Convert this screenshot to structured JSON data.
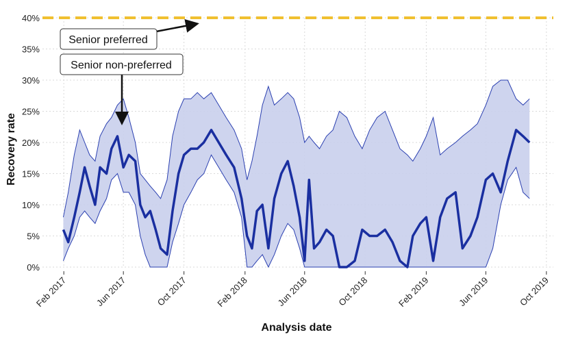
{
  "chart_data": {
    "type": "area",
    "xlabel": "Analysis date",
    "ylabel": "Recovery rate",
    "x_ticks": [
      "Feb 2017",
      "Jun 2017",
      "Oct 2017",
      "Feb 2018",
      "Jun 2018",
      "Oct 2018",
      "Feb 2019",
      "Jun 2019",
      "Oct 2019"
    ],
    "y_ticks": [
      "0%",
      "5%",
      "10%",
      "15%",
      "20%",
      "25%",
      "30%",
      "35%",
      "40%"
    ],
    "ylim": [
      0,
      40
    ],
    "xlim": [
      "2016-12-20",
      "2019-10-15"
    ],
    "grid": true,
    "colors": {
      "median": "#1a2fa0",
      "band_fill": "#c9cfec",
      "band_edge": "#2a3fb0",
      "reference": "#f0c030"
    },
    "annotations": [
      {
        "text": "Senior preferred"
      },
      {
        "text": "Senior non-preferred"
      }
    ],
    "reference_line": {
      "y": 40
    },
    "series": [
      {
        "role": "median",
        "x": [
          "2017-01-31",
          "2017-02-10",
          "2017-02-22",
          "2017-03-05",
          "2017-03-15",
          "2017-03-25",
          "2017-04-05",
          "2017-04-15",
          "2017-04-28",
          "2017-05-08",
          "2017-05-20",
          "2017-06-01",
          "2017-06-12",
          "2017-06-25",
          "2017-07-05",
          "2017-07-15",
          "2017-07-25",
          "2017-08-05",
          "2017-08-15",
          "2017-08-28",
          "2017-09-08",
          "2017-09-20",
          "2017-10-01",
          "2017-10-15",
          "2017-10-28",
          "2017-11-10",
          "2017-11-25",
          "2017-12-10",
          "2017-12-25",
          "2018-01-10",
          "2018-01-25",
          "2018-02-05",
          "2018-02-15",
          "2018-02-25",
          "2018-03-08",
          "2018-03-20",
          "2018-04-01",
          "2018-04-15",
          "2018-04-28",
          "2018-05-10",
          "2018-05-22",
          "2018-06-01",
          "2018-06-10",
          "2018-06-20",
          "2018-07-01",
          "2018-07-15",
          "2018-07-28",
          "2018-08-10",
          "2018-08-25",
          "2018-09-10",
          "2018-09-25",
          "2018-10-10",
          "2018-10-25",
          "2018-11-10",
          "2018-11-25",
          "2018-12-10",
          "2018-12-25",
          "2019-01-05",
          "2019-01-20",
          "2019-02-01",
          "2019-02-15",
          "2019-03-01",
          "2019-03-15",
          "2019-04-01",
          "2019-04-15",
          "2019-05-01",
          "2019-05-15",
          "2019-06-01",
          "2019-06-15",
          "2019-07-01",
          "2019-07-15",
          "2019-08-01",
          "2019-08-15",
          "2019-08-28"
        ],
        "values": [
          6,
          4,
          8,
          12,
          16,
          13,
          10,
          16,
          15,
          19,
          21,
          16,
          18,
          17,
          10,
          8,
          9,
          6,
          3,
          2,
          9,
          15,
          18,
          19,
          19,
          20,
          22,
          20,
          18,
          16,
          11,
          5,
          3,
          9,
          10,
          3,
          11,
          15,
          17,
          13,
          8,
          1,
          14,
          3,
          4,
          6,
          5,
          0,
          0,
          1,
          6,
          5,
          5,
          6,
          4,
          1,
          0,
          5,
          7,
          8,
          1,
          8,
          11,
          12,
          3,
          5,
          8,
          14,
          15,
          12,
          17,
          22,
          21,
          20
        ]
      },
      {
        "role": "band-upper",
        "x": [
          "2017-01-31",
          "2017-02-10",
          "2017-02-22",
          "2017-03-05",
          "2017-03-15",
          "2017-03-25",
          "2017-04-05",
          "2017-04-15",
          "2017-04-28",
          "2017-05-08",
          "2017-05-20",
          "2017-06-01",
          "2017-06-12",
          "2017-06-25",
          "2017-07-05",
          "2017-07-15",
          "2017-07-25",
          "2017-08-05",
          "2017-08-15",
          "2017-08-28",
          "2017-09-08",
          "2017-09-20",
          "2017-10-01",
          "2017-10-15",
          "2017-10-28",
          "2017-11-10",
          "2017-11-25",
          "2017-12-10",
          "2017-12-25",
          "2018-01-10",
          "2018-01-25",
          "2018-02-05",
          "2018-02-15",
          "2018-02-25",
          "2018-03-08",
          "2018-03-20",
          "2018-04-01",
          "2018-04-15",
          "2018-04-28",
          "2018-05-10",
          "2018-05-22",
          "2018-06-01",
          "2018-06-10",
          "2018-06-20",
          "2018-07-01",
          "2018-07-15",
          "2018-07-28",
          "2018-08-10",
          "2018-08-25",
          "2018-09-10",
          "2018-09-25",
          "2018-10-10",
          "2018-10-25",
          "2018-11-10",
          "2018-11-25",
          "2018-12-10",
          "2018-12-25",
          "2019-01-05",
          "2019-01-20",
          "2019-02-01",
          "2019-02-15",
          "2019-03-01",
          "2019-03-15",
          "2019-04-01",
          "2019-04-15",
          "2019-05-01",
          "2019-05-15",
          "2019-06-01",
          "2019-06-15",
          "2019-07-01",
          "2019-07-15",
          "2019-08-01",
          "2019-08-15",
          "2019-08-28"
        ],
        "values": [
          8,
          12,
          18,
          22,
          20,
          18,
          17,
          21,
          23,
          24,
          26,
          27,
          24,
          20,
          15,
          14,
          13,
          12,
          11,
          14,
          21,
          25,
          27,
          27,
          28,
          27,
          28,
          26,
          24,
          22,
          19,
          14,
          17,
          21,
          26,
          29,
          26,
          27,
          28,
          27,
          24,
          20,
          21,
          20,
          19,
          21,
          22,
          25,
          24,
          21,
          19,
          22,
          24,
          25,
          22,
          19,
          18,
          17,
          19,
          21,
          24,
          18,
          19,
          20,
          21,
          22,
          23,
          26,
          29,
          30,
          30,
          27,
          26,
          27
        ]
      },
      {
        "role": "band-lower",
        "x": [
          "2017-01-31",
          "2017-02-10",
          "2017-02-22",
          "2017-03-05",
          "2017-03-15",
          "2017-03-25",
          "2017-04-05",
          "2017-04-15",
          "2017-04-28",
          "2017-05-08",
          "2017-05-20",
          "2017-06-01",
          "2017-06-12",
          "2017-06-25",
          "2017-07-05",
          "2017-07-15",
          "2017-07-25",
          "2017-08-05",
          "2017-08-15",
          "2017-08-28",
          "2017-09-08",
          "2017-09-20",
          "2017-10-01",
          "2017-10-15",
          "2017-10-28",
          "2017-11-10",
          "2017-11-25",
          "2017-12-10",
          "2017-12-25",
          "2018-01-10",
          "2018-01-25",
          "2018-02-05",
          "2018-02-15",
          "2018-02-25",
          "2018-03-08",
          "2018-03-20",
          "2018-04-01",
          "2018-04-15",
          "2018-04-28",
          "2018-05-10",
          "2018-05-22",
          "2018-06-01",
          "2018-06-10",
          "2018-06-20",
          "2018-07-01",
          "2018-07-15",
          "2018-07-28",
          "2018-08-10",
          "2018-08-25",
          "2018-09-10",
          "2018-09-25",
          "2018-10-10",
          "2018-10-25",
          "2018-11-10",
          "2018-11-25",
          "2018-12-10",
          "2018-12-25",
          "2019-01-05",
          "2019-01-20",
          "2019-02-01",
          "2019-02-15",
          "2019-03-01",
          "2019-03-15",
          "2019-04-01",
          "2019-04-15",
          "2019-05-01",
          "2019-05-15",
          "2019-06-01",
          "2019-06-15",
          "2019-07-01",
          "2019-07-15",
          "2019-08-01",
          "2019-08-15",
          "2019-08-28"
        ],
        "values": [
          1,
          3,
          5,
          8,
          9,
          8,
          7,
          9,
          11,
          14,
          15,
          12,
          12,
          10,
          5,
          2,
          0,
          0,
          0,
          0,
          4,
          7,
          10,
          12,
          14,
          15,
          18,
          16,
          14,
          12,
          8,
          0,
          0,
          1,
          2,
          0,
          2,
          5,
          7,
          6,
          3,
          0,
          0,
          0,
          0,
          0,
          0,
          0,
          0,
          0,
          0,
          0,
          0,
          0,
          0,
          0,
          0,
          0,
          0,
          0,
          0,
          0,
          0,
          0,
          0,
          0,
          0,
          0,
          3,
          10,
          14,
          16,
          12,
          11
        ]
      }
    ]
  }
}
